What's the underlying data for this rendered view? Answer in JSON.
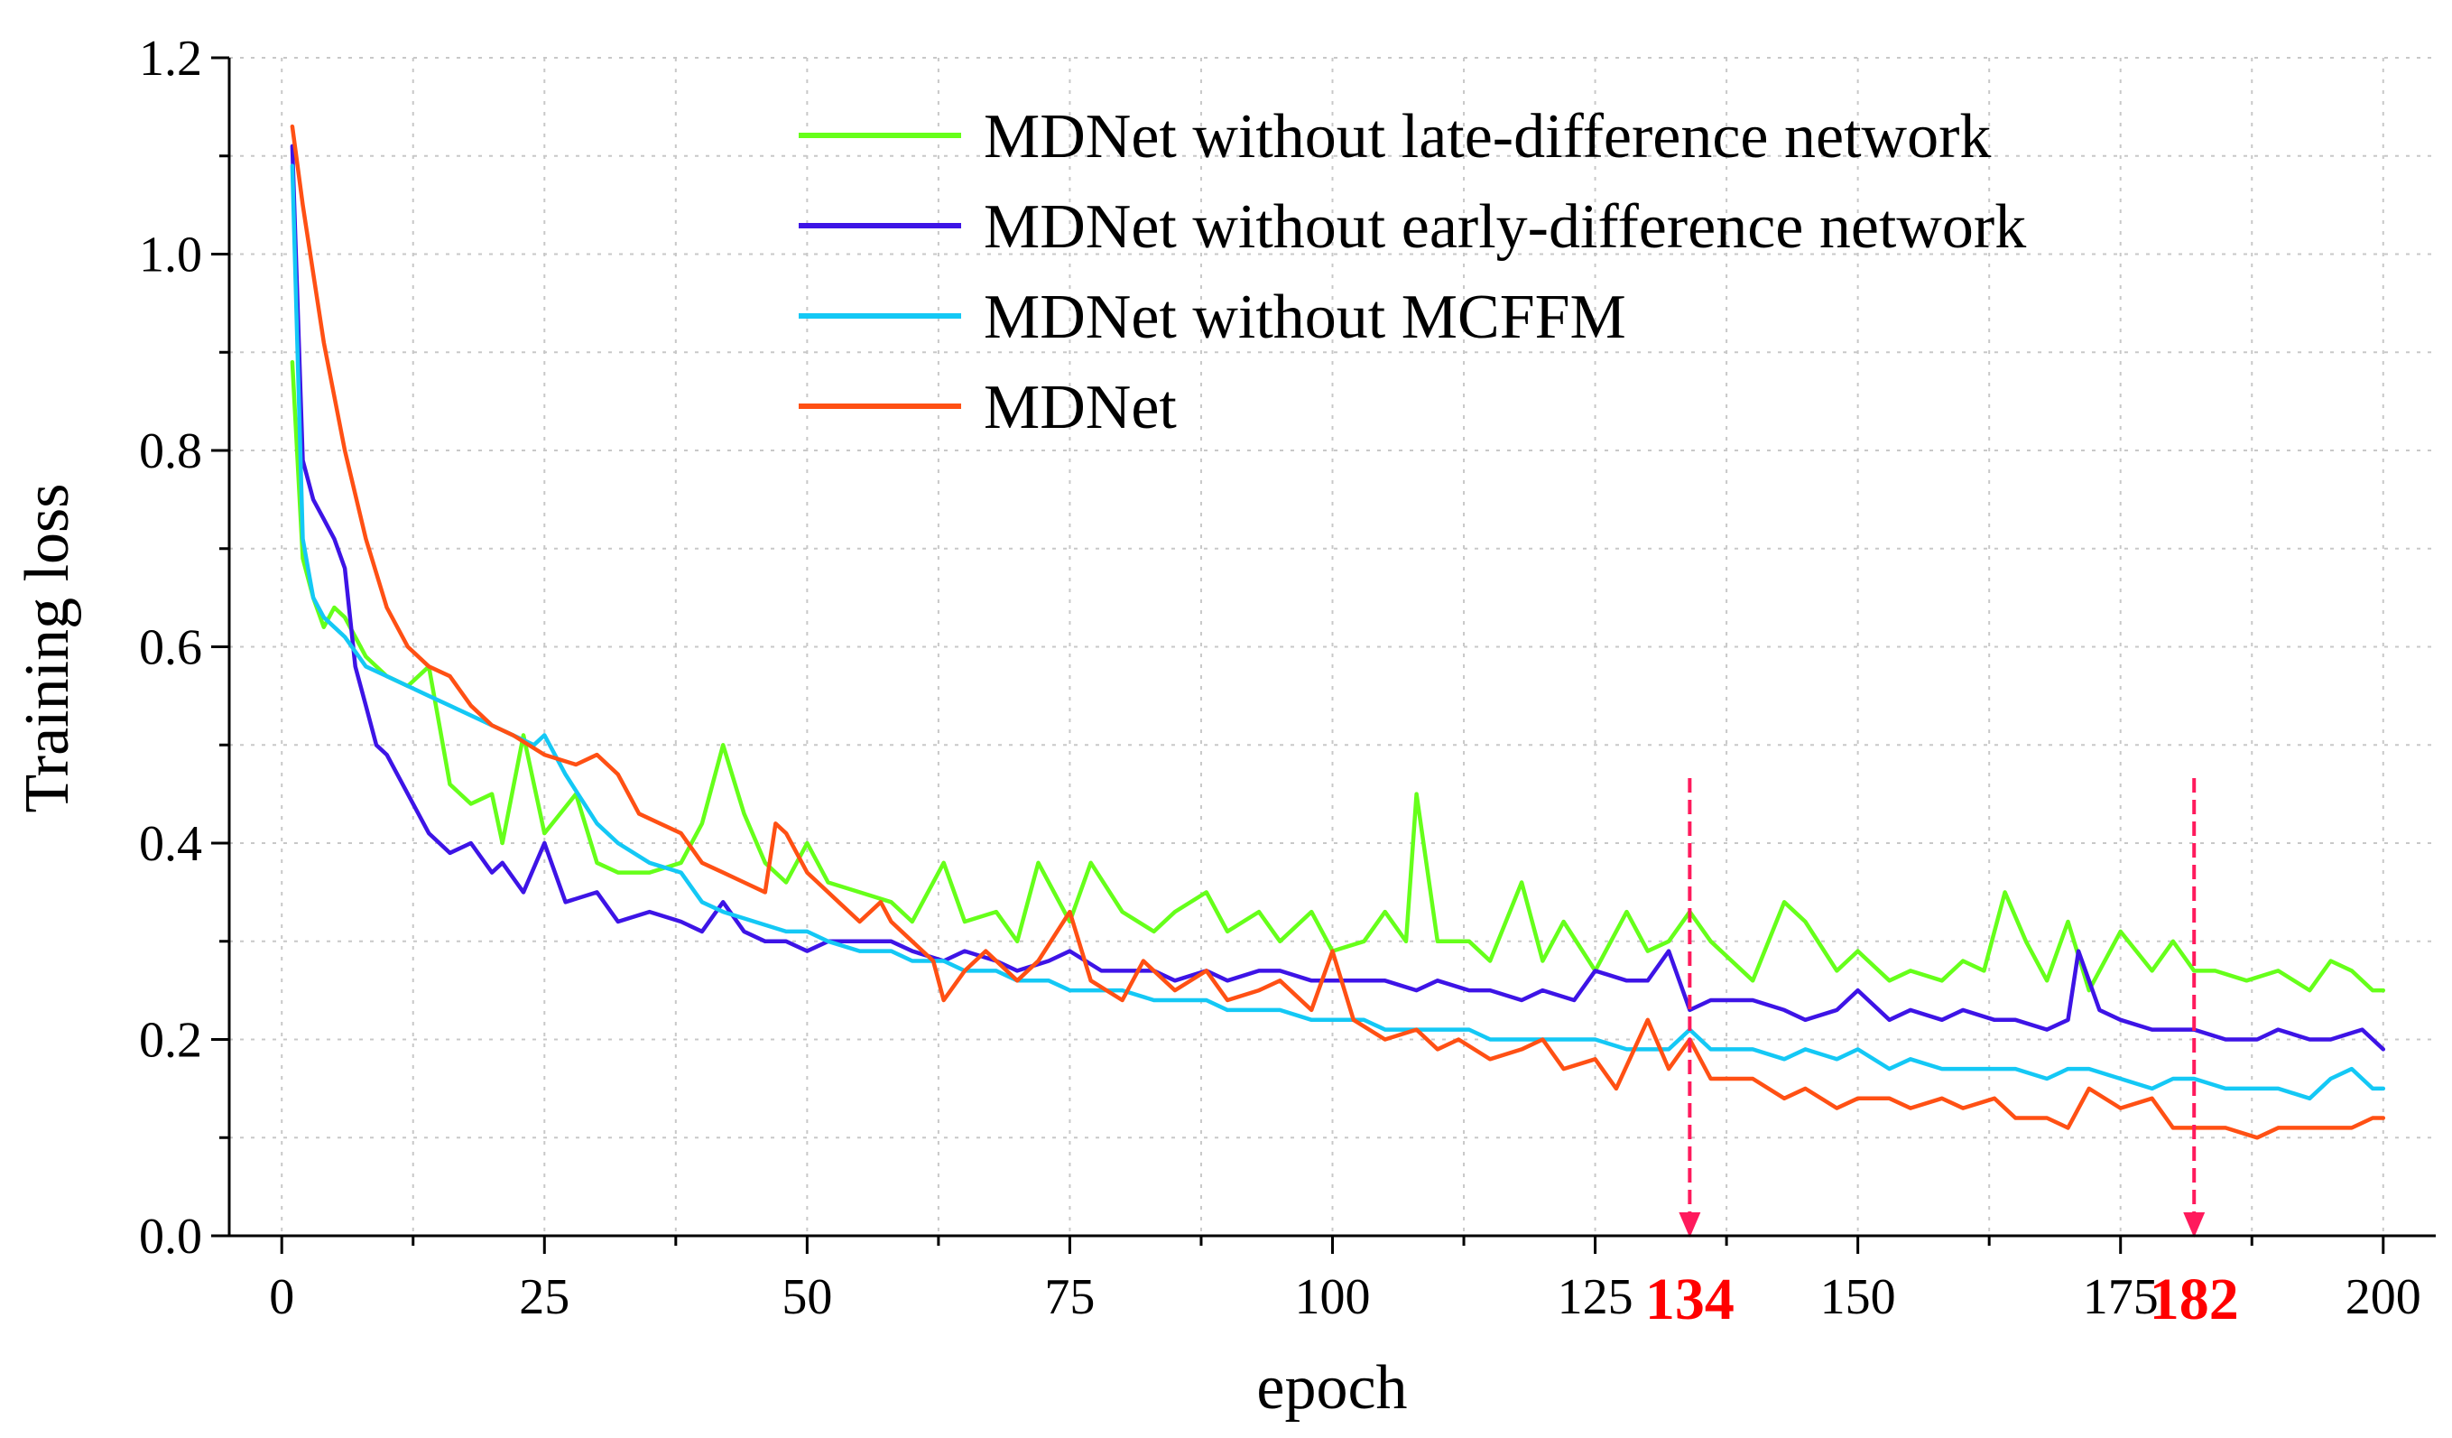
{
  "chart_data": {
    "type": "line",
    "title": "",
    "xlabel": "epoch",
    "ylabel": "Training  loss",
    "xlim": [
      -5,
      205
    ],
    "ylim": [
      0.0,
      1.2
    ],
    "xticks": [
      0,
      25,
      50,
      75,
      100,
      125,
      150,
      175,
      200
    ],
    "xtick_labels": [
      "0",
      "25",
      "50",
      "75",
      "100",
      "125",
      "150",
      "175",
      "200"
    ],
    "yticks": [
      0.0,
      0.2,
      0.4,
      0.6,
      0.8,
      1.0,
      1.2
    ],
    "ytick_labels": [
      "0.0",
      "0.2",
      "0.4",
      "0.6",
      "0.8",
      "1.0",
      "1.2"
    ],
    "grid": true,
    "legend_position": "top-right",
    "markers": [
      {
        "x": 134,
        "label": "134",
        "color": "#ff0000"
      },
      {
        "x": 182,
        "label": "182",
        "color": "#ff0000"
      }
    ],
    "series": [
      {
        "name": "MDNet without late-difference network",
        "color": "#66ff1a",
        "x": [
          1,
          2,
          3,
          4,
          5,
          6,
          8,
          10,
          12,
          14,
          15,
          16,
          18,
          20,
          21,
          23,
          25,
          28,
          30,
          32,
          35,
          38,
          40,
          42,
          44,
          46,
          48,
          50,
          52,
          55,
          58,
          60,
          63,
          65,
          68,
          70,
          72,
          75,
          77,
          80,
          83,
          85,
          88,
          90,
          93,
          95,
          98,
          100,
          103,
          105,
          107,
          108,
          110,
          113,
          115,
          118,
          120,
          122,
          125,
          128,
          130,
          132,
          134,
          136,
          140,
          143,
          145,
          148,
          150,
          153,
          155,
          158,
          160,
          162,
          164,
          166,
          168,
          170,
          172,
          175,
          178,
          180,
          182,
          184,
          187,
          190,
          193,
          195,
          197,
          199,
          200
        ],
        "y": [
          0.89,
          0.69,
          0.65,
          0.62,
          0.64,
          0.63,
          0.59,
          0.57,
          0.56,
          0.58,
          0.52,
          0.46,
          0.44,
          0.45,
          0.4,
          0.51,
          0.41,
          0.45,
          0.38,
          0.37,
          0.37,
          0.38,
          0.42,
          0.5,
          0.43,
          0.38,
          0.36,
          0.4,
          0.36,
          0.35,
          0.34,
          0.32,
          0.38,
          0.32,
          0.33,
          0.3,
          0.38,
          0.32,
          0.38,
          0.33,
          0.31,
          0.33,
          0.35,
          0.31,
          0.33,
          0.3,
          0.33,
          0.29,
          0.3,
          0.33,
          0.3,
          0.45,
          0.3,
          0.3,
          0.28,
          0.36,
          0.28,
          0.32,
          0.27,
          0.33,
          0.29,
          0.3,
          0.33,
          0.3,
          0.26,
          0.34,
          0.32,
          0.27,
          0.29,
          0.26,
          0.27,
          0.26,
          0.28,
          0.27,
          0.35,
          0.3,
          0.26,
          0.32,
          0.25,
          0.31,
          0.27,
          0.3,
          0.27,
          0.27,
          0.26,
          0.27,
          0.25,
          0.28,
          0.27,
          0.25,
          0.25
        ]
      },
      {
        "name": "MDNet without early-difference network",
        "color": "#3d14e6",
        "x": [
          1,
          2,
          3,
          4,
          5,
          6,
          7,
          8,
          9,
          10,
          12,
          14,
          15,
          16,
          18,
          20,
          21,
          23,
          25,
          27,
          30,
          32,
          35,
          38,
          40,
          42,
          44,
          46,
          48,
          50,
          52,
          55,
          58,
          60,
          63,
          65,
          68,
          70,
          73,
          75,
          78,
          80,
          83,
          85,
          88,
          90,
          93,
          95,
          98,
          100,
          103,
          105,
          108,
          110,
          113,
          115,
          118,
          120,
          123,
          125,
          128,
          130,
          132,
          134,
          136,
          140,
          143,
          145,
          148,
          150,
          153,
          155,
          158,
          160,
          163,
          165,
          168,
          170,
          171,
          173,
          175,
          178,
          180,
          182,
          185,
          188,
          190,
          193,
          195,
          198,
          200
        ],
        "y": [
          1.11,
          0.79,
          0.75,
          0.73,
          0.71,
          0.68,
          0.58,
          0.54,
          0.5,
          0.49,
          0.45,
          0.41,
          0.4,
          0.39,
          0.4,
          0.37,
          0.38,
          0.35,
          0.4,
          0.34,
          0.35,
          0.32,
          0.33,
          0.32,
          0.31,
          0.34,
          0.31,
          0.3,
          0.3,
          0.29,
          0.3,
          0.3,
          0.3,
          0.29,
          0.28,
          0.29,
          0.28,
          0.27,
          0.28,
          0.29,
          0.27,
          0.27,
          0.27,
          0.26,
          0.27,
          0.26,
          0.27,
          0.27,
          0.26,
          0.26,
          0.26,
          0.26,
          0.25,
          0.26,
          0.25,
          0.25,
          0.24,
          0.25,
          0.24,
          0.27,
          0.26,
          0.26,
          0.29,
          0.23,
          0.24,
          0.24,
          0.23,
          0.22,
          0.23,
          0.25,
          0.22,
          0.23,
          0.22,
          0.23,
          0.22,
          0.22,
          0.21,
          0.22,
          0.29,
          0.23,
          0.22,
          0.21,
          0.21,
          0.21,
          0.2,
          0.2,
          0.21,
          0.2,
          0.2,
          0.21,
          0.19
        ]
      },
      {
        "name": "MDNet without MCFFM",
        "color": "#14c8f5",
        "x": [
          1,
          2,
          3,
          4,
          5,
          6,
          8,
          10,
          12,
          14,
          16,
          18,
          20,
          22,
          24,
          25,
          27,
          30,
          32,
          35,
          38,
          40,
          42,
          45,
          48,
          50,
          52,
          55,
          58,
          60,
          63,
          65,
          68,
          70,
          73,
          75,
          78,
          80,
          83,
          85,
          88,
          90,
          93,
          95,
          98,
          100,
          103,
          105,
          108,
          110,
          113,
          115,
          118,
          120,
          123,
          125,
          128,
          130,
          132,
          134,
          136,
          140,
          143,
          145,
          148,
          150,
          153,
          155,
          158,
          160,
          163,
          165,
          168,
          170,
          172,
          175,
          178,
          180,
          182,
          185,
          188,
          190,
          193,
          195,
          197,
          199,
          200
        ],
        "y": [
          1.09,
          0.71,
          0.65,
          0.63,
          0.62,
          0.61,
          0.58,
          0.57,
          0.56,
          0.55,
          0.54,
          0.53,
          0.52,
          0.51,
          0.5,
          0.51,
          0.47,
          0.42,
          0.4,
          0.38,
          0.37,
          0.34,
          0.33,
          0.32,
          0.31,
          0.31,
          0.3,
          0.29,
          0.29,
          0.28,
          0.28,
          0.27,
          0.27,
          0.26,
          0.26,
          0.25,
          0.25,
          0.25,
          0.24,
          0.24,
          0.24,
          0.23,
          0.23,
          0.23,
          0.22,
          0.22,
          0.22,
          0.21,
          0.21,
          0.21,
          0.21,
          0.2,
          0.2,
          0.2,
          0.2,
          0.2,
          0.19,
          0.19,
          0.19,
          0.21,
          0.19,
          0.19,
          0.18,
          0.19,
          0.18,
          0.19,
          0.17,
          0.18,
          0.17,
          0.17,
          0.17,
          0.17,
          0.16,
          0.17,
          0.17,
          0.16,
          0.15,
          0.16,
          0.16,
          0.15,
          0.15,
          0.15,
          0.14,
          0.16,
          0.17,
          0.15,
          0.15
        ]
      },
      {
        "name": "MDNet",
        "color": "#ff5014",
        "x": [
          1,
          2,
          4,
          6,
          8,
          10,
          12,
          14,
          16,
          18,
          20,
          22,
          25,
          28,
          30,
          32,
          34,
          36,
          38,
          40,
          42,
          44,
          46,
          47,
          48,
          50,
          53,
          55,
          57,
          58,
          60,
          62,
          63,
          65,
          67,
          70,
          72,
          75,
          77,
          80,
          82,
          85,
          88,
          90,
          93,
          95,
          98,
          100,
          102,
          105,
          108,
          110,
          112,
          115,
          118,
          120,
          122,
          125,
          127,
          130,
          132,
          134,
          136,
          140,
          143,
          145,
          148,
          150,
          153,
          155,
          158,
          160,
          163,
          165,
          168,
          170,
          172,
          175,
          178,
          180,
          182,
          185,
          188,
          190,
          193,
          195,
          197,
          199,
          200
        ],
        "y": [
          1.13,
          1.05,
          0.91,
          0.8,
          0.71,
          0.64,
          0.6,
          0.58,
          0.57,
          0.54,
          0.52,
          0.51,
          0.49,
          0.48,
          0.49,
          0.47,
          0.43,
          0.42,
          0.41,
          0.38,
          0.37,
          0.36,
          0.35,
          0.42,
          0.41,
          0.37,
          0.34,
          0.32,
          0.34,
          0.32,
          0.3,
          0.28,
          0.24,
          0.27,
          0.29,
          0.26,
          0.28,
          0.33,
          0.26,
          0.24,
          0.28,
          0.25,
          0.27,
          0.24,
          0.25,
          0.26,
          0.23,
          0.29,
          0.22,
          0.2,
          0.21,
          0.19,
          0.2,
          0.18,
          0.19,
          0.2,
          0.17,
          0.18,
          0.15,
          0.22,
          0.17,
          0.2,
          0.16,
          0.16,
          0.14,
          0.15,
          0.13,
          0.14,
          0.14,
          0.13,
          0.14,
          0.13,
          0.14,
          0.12,
          0.12,
          0.11,
          0.15,
          0.13,
          0.14,
          0.11,
          0.11,
          0.11,
          0.1,
          0.11,
          0.11,
          0.11,
          0.11,
          0.12,
          0.12
        ]
      }
    ]
  }
}
